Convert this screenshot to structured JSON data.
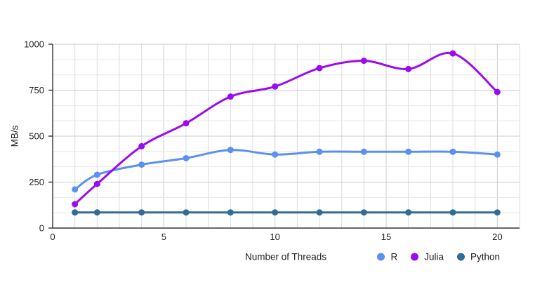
{
  "chart_data": {
    "type": "line",
    "title": "",
    "xlabel": "Number of Threads",
    "ylabel": "MB/s",
    "x": [
      1,
      2,
      4,
      6,
      8,
      10,
      12,
      14,
      16,
      18,
      20
    ],
    "series": [
      {
        "name": "R",
        "color": "#5B90F0",
        "values": [
          210,
          290,
          345,
          380,
          425,
          400,
          415,
          415,
          415,
          415,
          400
        ]
      },
      {
        "name": "Julia",
        "color": "#9A0BF0",
        "values": [
          130,
          240,
          445,
          570,
          715,
          770,
          870,
          910,
          865,
          950,
          740
        ]
      },
      {
        "name": "Python",
        "color": "#306C94",
        "values": [
          85,
          85,
          85,
          85,
          85,
          85,
          85,
          85,
          85,
          85,
          85
        ]
      }
    ],
    "xlim": [
      0,
      21
    ],
    "ylim": [
      0,
      1000
    ],
    "x_ticks": [
      0,
      5,
      10,
      15,
      20
    ],
    "y_ticks": [
      0,
      250,
      500,
      750,
      1000
    ],
    "y_minor_divisions_per_major": 3,
    "x_minor_step": 1,
    "smooth": true,
    "grid": true,
    "legend_position": "bottom-right",
    "colors": {
      "background": "#ffffff",
      "axis_line": "#333333",
      "major_gridline": "#cccccc",
      "minor_h_gridline": "#e7e7e7",
      "minor_v_gridline": "#dcdcdc",
      "tick_label": "#222222"
    }
  }
}
